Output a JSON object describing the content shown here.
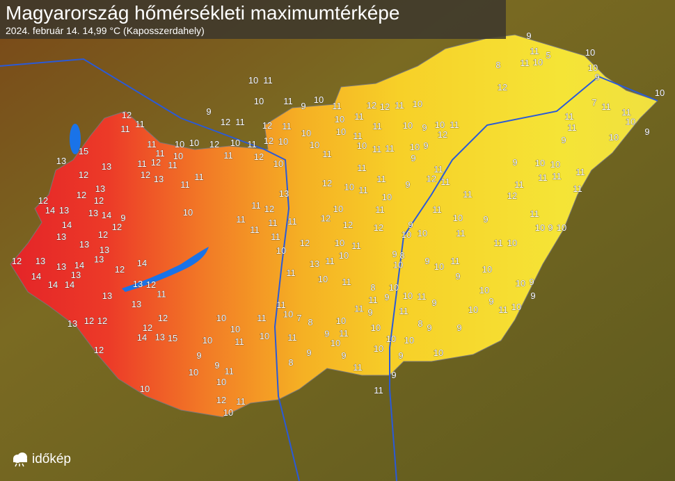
{
  "header": {
    "title": "Magyarország hőmérsékleti maximumtérképe",
    "subtitle": "2024. február 14.   14,99 °C (Kaposszerdahely)"
  },
  "logo": {
    "text": "időkép",
    "icon": "cloud-sun-icon"
  },
  "colors": {
    "hot": "#e8282a",
    "warm": "#f28a22",
    "mild": "#f7d62a",
    "water": "#1a73e8",
    "terrain": "#6b5e22"
  },
  "map": {
    "readings": [
      15,
      13,
      13,
      12,
      13,
      12,
      14,
      12,
      13,
      13,
      12,
      9,
      14,
      13,
      14,
      12,
      13,
      13,
      12,
      13,
      14,
      13,
      12,
      14,
      14,
      13,
      14,
      13,
      12,
      14,
      13,
      12,
      13,
      14,
      12,
      15,
      12,
      13,
      13,
      12,
      12,
      11,
      13,
      12,
      11,
      11,
      11,
      10,
      10,
      11,
      12,
      12,
      10,
      11,
      11,
      13,
      12,
      11,
      10,
      11,
      9,
      12,
      11,
      10,
      12,
      11,
      11,
      12,
      12,
      10,
      13,
      11,
      12,
      11,
      11,
      11,
      11,
      10,
      11,
      12,
      11,
      10,
      12,
      11,
      13,
      10,
      11,
      10,
      10,
      12,
      11,
      12,
      11,
      11,
      11,
      9,
      10,
      11,
      10,
      12,
      11,
      9,
      10,
      11,
      10,
      11,
      10,
      11,
      10,
      10,
      11,
      10,
      12,
      10,
      11,
      10,
      11,
      9,
      10,
      11,
      10,
      11,
      12,
      11,
      12,
      11,
      10,
      10,
      9,
      10,
      11,
      12,
      9,
      11,
      11,
      12,
      11,
      10,
      11,
      9,
      10,
      8,
      10,
      9,
      10,
      11,
      9,
      10,
      11,
      9,
      11,
      10,
      9,
      10,
      11,
      9,
      8,
      11,
      9,
      10,
      11,
      8,
      9,
      9,
      10,
      9,
      9,
      11,
      11,
      10,
      10,
      10,
      10,
      9,
      11,
      10,
      11,
      10,
      9,
      9,
      11,
      8,
      9,
      8,
      7,
      11,
      10,
      11,
      10,
      11,
      10,
      10,
      10,
      9,
      10,
      11,
      12,
      10,
      11,
      10,
      9,
      10,
      10,
      10,
      9,
      11,
      10,
      10,
      9,
      9,
      11,
      10,
      9,
      10,
      10,
      12,
      11,
      11,
      11,
      10,
      10,
      9,
      11,
      11,
      9,
      11,
      11,
      7,
      11,
      11,
      10,
      10,
      9,
      10,
      10,
      10,
      9,
      9,
      11,
      5,
      10,
      11,
      8,
      12
    ]
  }
}
